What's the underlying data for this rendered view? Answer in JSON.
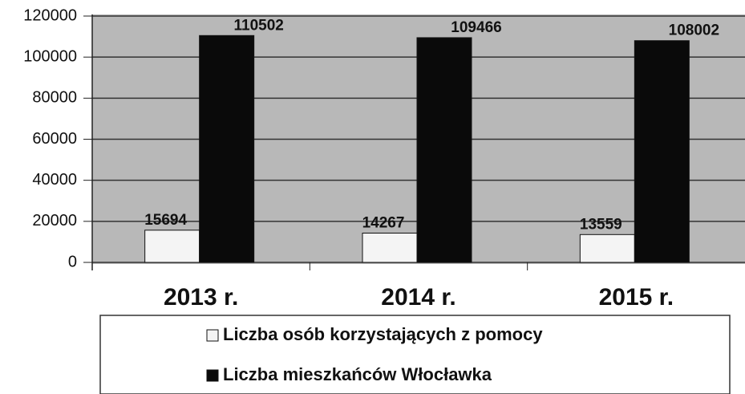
{
  "chart_data": {
    "type": "bar",
    "categories": [
      "2013 r.",
      "2014 r.",
      "2015 r."
    ],
    "series": [
      {
        "name": "Liczba osób korzystających z pomocy",
        "color": "#f4f4f4",
        "values": [
          15694,
          14267,
          13559
        ]
      },
      {
        "name": "Liczba mieszkańców Włocławka",
        "color": "#0a0a0a",
        "values": [
          110502,
          109466,
          108002
        ]
      }
    ],
    "ylim": [
      0,
      120000
    ],
    "yticks": [
      0,
      20000,
      40000,
      60000,
      80000,
      100000,
      120000
    ],
    "grid": true
  }
}
